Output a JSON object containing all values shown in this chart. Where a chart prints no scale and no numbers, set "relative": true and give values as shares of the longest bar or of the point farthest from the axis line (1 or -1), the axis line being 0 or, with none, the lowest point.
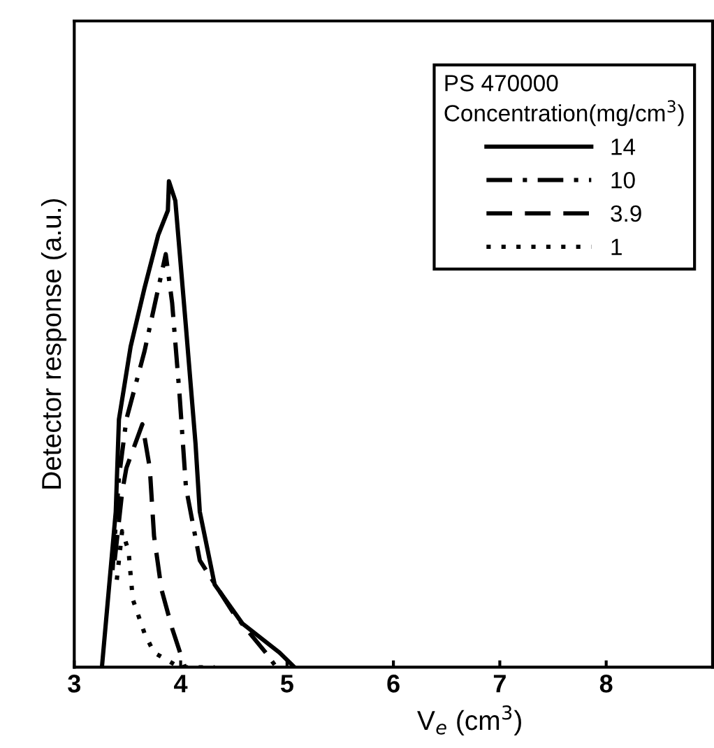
{
  "chart_data": {
    "type": "line",
    "relative": true,
    "xlabel": "V$_{e}$ (cm$^{3}$)",
    "ylabel": "Detector response (a.u.)",
    "legend_title": "PS 470000\nConcentration(mg/cm$^{3}$)",
    "legend": "top right",
    "marker": "none",
    "xlim": [
      3,
      9
    ],
    "xticks": [
      3,
      4,
      5,
      6,
      7,
      8
    ],
    "series": [
      {
        "name": "14",
        "color": "#000000",
        "line_style": "solid",
        "x": [
          3.26,
          3.39,
          3.42,
          3.53,
          3.66,
          3.79,
          3.88,
          3.89,
          3.95,
          4.05,
          4.14,
          4.18,
          4.32,
          4.58,
          4.93,
          5.07
        ],
        "values": [
          0,
          0.32,
          0.51,
          0.66,
          0.78,
          0.89,
          0.94,
          1.0,
          0.96,
          0.7,
          0.46,
          0.32,
          0.17,
          0.09,
          0.03,
          0
        ]
      },
      {
        "name": "10",
        "color": "#000000",
        "line_style": "dashdot",
        "x": [
          3.36,
          3.42,
          3.49,
          3.66,
          3.78,
          3.86,
          3.92,
          3.99,
          4.05,
          4.18,
          4.5,
          4.8,
          4.9
        ],
        "values": [
          0.2,
          0.39,
          0.51,
          0.65,
          0.77,
          0.85,
          0.75,
          0.56,
          0.37,
          0.22,
          0.11,
          0.03,
          0
        ]
      },
      {
        "name": "3.9",
        "color": "#000000",
        "line_style": "dashed",
        "x": [
          3.38,
          3.45,
          3.49,
          3.64,
          3.71,
          3.75,
          3.82,
          3.92,
          4.04
        ],
        "values": [
          0.22,
          0.36,
          0.41,
          0.5,
          0.41,
          0.27,
          0.16,
          0.08,
          0
        ]
      },
      {
        "name": "1",
        "color": "#000000",
        "line_style": "dotted",
        "x": [
          3.4,
          3.45,
          3.51,
          3.55,
          3.66,
          3.75,
          3.99,
          4.32
        ],
        "values": [
          0.18,
          0.28,
          0.24,
          0.14,
          0.07,
          0.03,
          0,
          0
        ]
      }
    ]
  }
}
